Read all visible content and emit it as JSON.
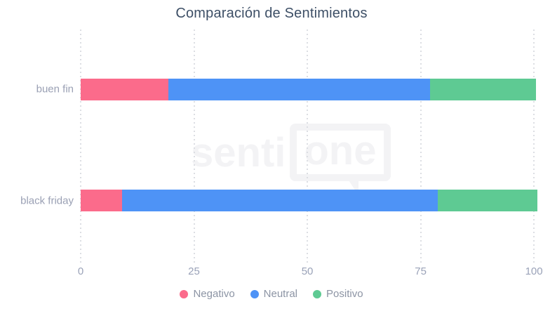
{
  "title": "Comparación de Sentimientos",
  "watermark": {
    "text_left": "senti",
    "text_boxed": "one"
  },
  "chart_data": {
    "type": "bar",
    "orientation": "horizontal",
    "stacked": true,
    "title": "Comparación de Sentimientos",
    "categories": [
      "buen fin",
      "black friday"
    ],
    "series": [
      {
        "name": "Negativo",
        "color": "#FB6B8B",
        "values": [
          19.3,
          9.1
        ]
      },
      {
        "name": "Neutral",
        "color": "#4E93F6",
        "values": [
          57.8,
          69.7
        ]
      },
      {
        "name": "Positivo",
        "color": "#5ECA93",
        "values": [
          23.4,
          21.9
        ]
      }
    ],
    "xlabel": "",
    "ylabel": "",
    "xlim": [
      0,
      100.6
    ],
    "xticks": [
      0,
      25,
      50,
      75,
      100
    ],
    "grid": "vertical-dotted",
    "legend_position": "bottom",
    "colors": {
      "title_text": "#3D4F66",
      "axis_text": "#9AA2B8",
      "category_text": "#9AA0B4",
      "legend_text": "#8C94A4",
      "gridline": "#DCDEE3",
      "watermark": "#F3F3F5",
      "background": "#FFFFFF"
    }
  }
}
